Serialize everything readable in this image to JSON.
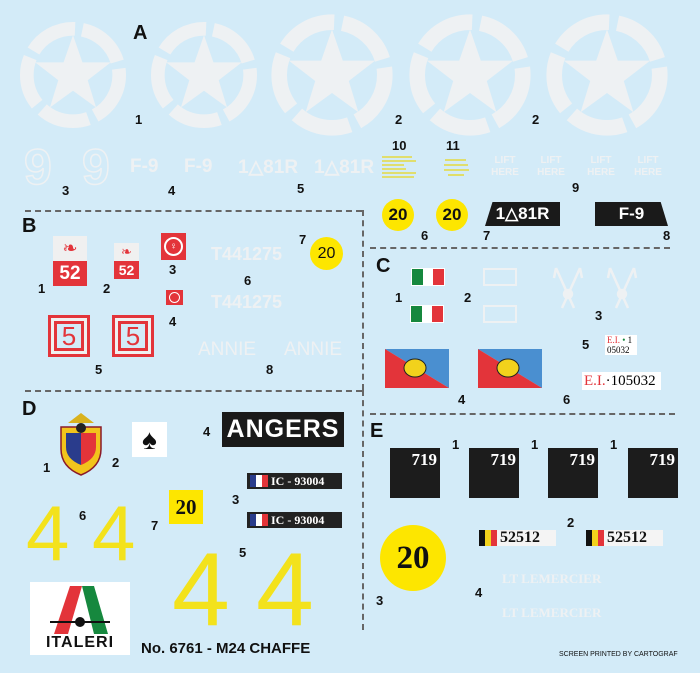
{
  "sections": {
    "a": "A",
    "b": "B",
    "c": "C",
    "d": "D",
    "e": "E"
  },
  "markers": {
    "a": [
      "1",
      "2",
      "2",
      "3",
      "4",
      "5",
      "10",
      "11",
      "9",
      "6",
      "7",
      "8"
    ],
    "b": [
      "1",
      "2",
      "3",
      "4",
      "5",
      "6",
      "7",
      "8"
    ],
    "c": [
      "1",
      "2",
      "3",
      "4",
      "5",
      "6"
    ],
    "d": [
      "1",
      "2",
      "3",
      "4",
      "5",
      "6",
      "7"
    ],
    "e": [
      "1",
      "1",
      "1",
      "2",
      "3",
      "4"
    ]
  },
  "sheet_a": {
    "nine": "9",
    "f9": "F-9",
    "unit": "1△81R",
    "lift_line1": "LIFT",
    "lift_line2": "HERE",
    "circle_number": "20",
    "plate_unit": "1△81R",
    "plate_f9": "F-9"
  },
  "sheet_b": {
    "badge_number": "52",
    "box_number": "5",
    "serial": "T441275",
    "circle_number": "20",
    "name": "ANNIE"
  },
  "sheet_c": {
    "plate_small_prefix": "E.I.",
    "plate_small_dot": "•",
    "plate_small_line1": "1",
    "plate_small_line2": "05032",
    "plate_prefix": "E.I.",
    "plate_number": "·105032"
  },
  "sheet_d": {
    "town": "ANGERS",
    "registration": "IC - 93004",
    "square_number": "20",
    "digit": "4",
    "logo_text": "ITALERI",
    "kit_title": "No. 6761 - M24 CHAFFE"
  },
  "sheet_e": {
    "square_number": "719",
    "circle_number": "20",
    "registration": "52512",
    "name": "LT LEMERCIER",
    "printer": "SCREEN PRINTED BY CARTOGRAF"
  },
  "colors": {
    "background": "#d3ebf8",
    "decal_white": "#eef1f3",
    "yellow": "#fde600",
    "red": "#e3343a",
    "italy_green": "#16883e",
    "blue": "#4a8fd0"
  }
}
